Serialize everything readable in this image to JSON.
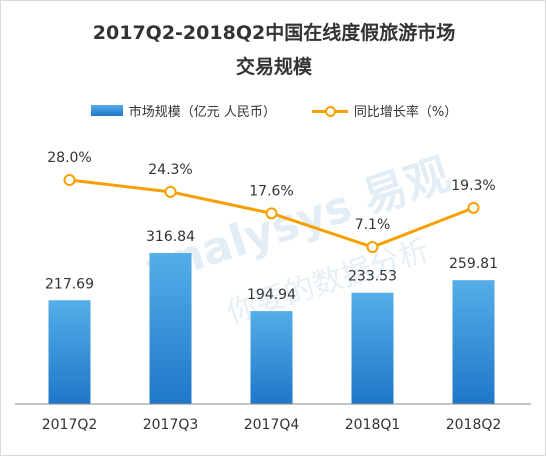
{
  "title_line1": "2017Q2-2018Q2中国在线度假旅游市场",
  "title_line2": "交易规模",
  "watermark": "analysys 易观",
  "watermark_cn": "你要的数据分析",
  "colors": {
    "bar_top": "#55aee8",
    "bar_bottom": "#1f77c9",
    "line": "#f5a000",
    "text": "#333333"
  },
  "legend": {
    "position": "top",
    "bar_label": "市场规模（亿元 人民币）",
    "line_label": "同比增长率（%）"
  },
  "chart_data": {
    "type": "bar",
    "categories": [
      "2017Q2",
      "2017Q3",
      "2017Q4",
      "2018Q1",
      "2018Q2"
    ],
    "series": [
      {
        "name": "市场规模（亿元 人民币）",
        "type": "bar",
        "values": [
          217.69,
          316.84,
          194.94,
          233.53,
          259.81
        ],
        "labels": [
          "217.69",
          "316.84",
          "194.94",
          "233.53",
          "259.81"
        ]
      },
      {
        "name": "同比增长率（%）",
        "type": "line",
        "values": [
          28.0,
          24.3,
          17.6,
          7.1,
          19.3
        ],
        "labels": [
          "28.0%",
          "24.3%",
          "17.6%",
          "7.1%",
          "19.3%"
        ]
      }
    ],
    "grid": false
  }
}
